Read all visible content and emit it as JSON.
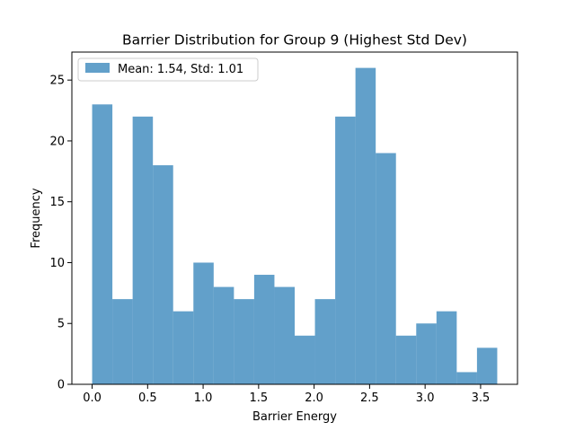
{
  "chart_data": {
    "type": "bar",
    "title": "Barrier Distribution for Group 9 (Highest Std Dev)",
    "xlabel": "Barrier Energy",
    "ylabel": "Frequency",
    "bin_edges": [
      0.0,
      0.1825,
      0.365,
      0.5475,
      0.73,
      0.9125,
      1.095,
      1.2775,
      1.46,
      1.6425,
      1.825,
      2.0075,
      2.19,
      2.3725,
      2.555,
      2.7375,
      2.92,
      3.1025,
      3.285,
      3.4675,
      3.65
    ],
    "values": [
      23,
      7,
      22,
      18,
      6,
      10,
      8,
      7,
      9,
      8,
      4,
      7,
      22,
      26,
      19,
      4,
      5,
      6,
      1,
      3
    ],
    "xlim": [
      -0.1825,
      3.8325
    ],
    "ylim": [
      0,
      27.3
    ],
    "xticks": [
      0.0,
      0.5,
      1.0,
      1.5,
      2.0,
      2.5,
      3.0,
      3.5
    ],
    "xtick_labels": [
      "0.0",
      "0.5",
      "1.0",
      "1.5",
      "2.0",
      "2.5",
      "3.0",
      "3.5"
    ],
    "yticks": [
      0,
      5,
      10,
      15,
      20,
      25
    ],
    "ytick_labels": [
      "0",
      "5",
      "10",
      "15",
      "20",
      "25"
    ],
    "legend": {
      "label": "Mean: 1.54, Std: 1.01",
      "position": "upper-left"
    },
    "bar_color": "#1f77b4",
    "bar_opacity": 0.7,
    "grid": false
  }
}
